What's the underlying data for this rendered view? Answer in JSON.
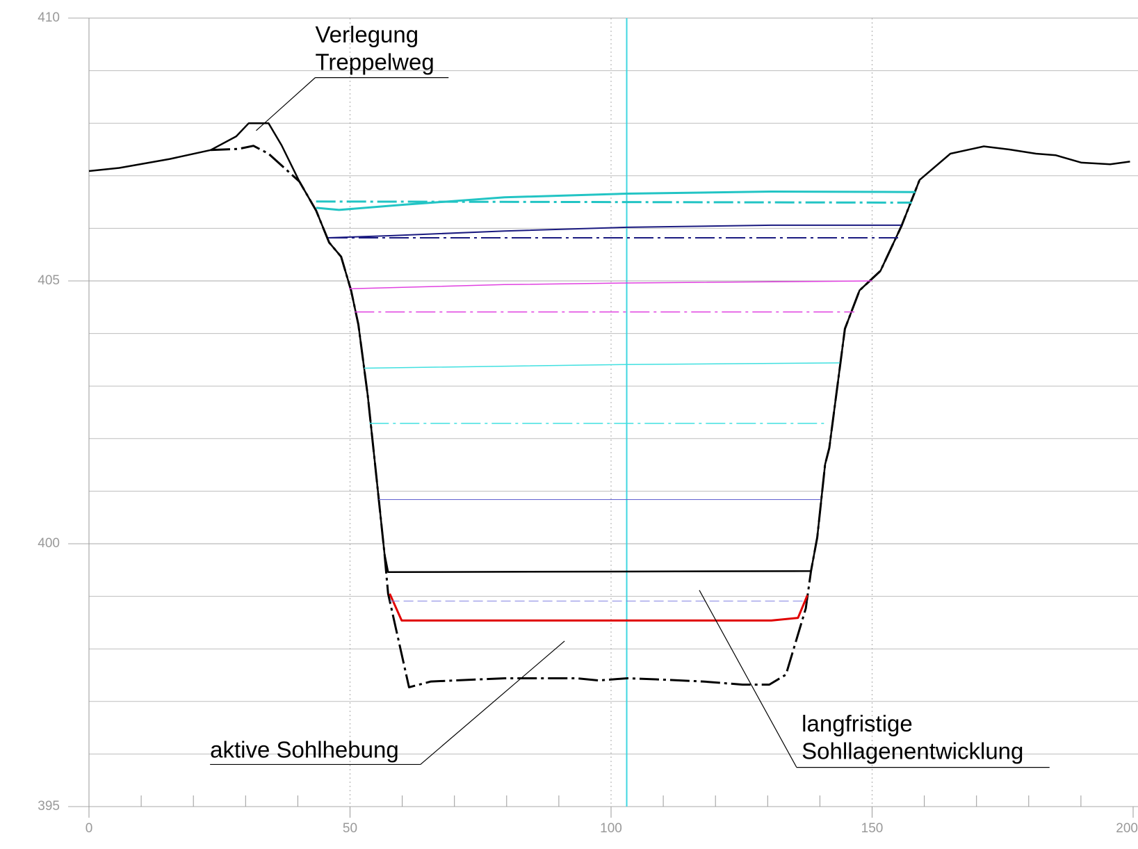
{
  "chart_data": {
    "type": "line",
    "xlim": [
      0,
      200
    ],
    "ylim": [
      395,
      410
    ],
    "xticks": [
      0,
      50,
      100,
      150,
      200
    ],
    "yticks": [
      395,
      400,
      405,
      410
    ],
    "minor_xticks": [
      10,
      20,
      30,
      40,
      60,
      70,
      80,
      90,
      110,
      120,
      130,
      140,
      160,
      170,
      180,
      190
    ],
    "minor_yticks": [
      396,
      397,
      398,
      399,
      401,
      402,
      403,
      404,
      406,
      407,
      408,
      409
    ],
    "grid": true,
    "vline": {
      "x": 103,
      "color": "#3fd6e0"
    },
    "series": [
      {
        "color": "#000000",
        "style": "dashdot",
        "width": 3,
        "x": [
          23.3,
          28.6,
          31.5,
          34.4,
          40.3,
          43.5,
          46.0,
          48.3,
          50.2,
          51.6,
          53.4,
          55.1,
          56.6,
          57.3,
          61.3,
          65.5,
          79.6,
          93.4,
          97.6,
          103.1,
          108.6,
          117.6,
          125.2,
          130.3,
          133.5,
          137.3,
          138.3,
          139.5,
          141.0,
          141.8,
          144.8,
          147.6,
          151.6,
          155.6,
          159.1
        ],
        "values": [
          407.49,
          407.51,
          407.57,
          407.42,
          406.89,
          406.34,
          405.73,
          405.46,
          404.82,
          404.17,
          402.82,
          401.23,
          399.81,
          399.05,
          397.27,
          397.38,
          397.44,
          397.44,
          397.4,
          397.44,
          397.42,
          397.38,
          397.32,
          397.32,
          397.51,
          398.77,
          399.48,
          400.12,
          401.51,
          401.82,
          404.09,
          404.82,
          405.19,
          406.04,
          406.92
        ]
      },
      {
        "color": "#000000",
        "style": "solid",
        "width": 2.5,
        "x": [
          0,
          5.8,
          15.5,
          23.3,
          28.2,
          30.6,
          34.4,
          36.9,
          40.3,
          43.5,
          46.0,
          48.3,
          50.2,
          51.6,
          53.4,
          55.1,
          56.6,
          57.3,
          138.3,
          139.5,
          141.0,
          141.8,
          144.8,
          147.6,
          151.6,
          155.6,
          159.1,
          165.0,
          171.4,
          176.3,
          181.4,
          185.2,
          190.1,
          195.6,
          199.4
        ],
        "values": [
          407.09,
          407.15,
          407.32,
          407.49,
          407.75,
          408.0,
          408.0,
          407.58,
          406.89,
          406.34,
          405.73,
          405.46,
          404.82,
          404.17,
          402.82,
          401.23,
          399.81,
          399.46,
          399.48,
          400.12,
          401.51,
          401.82,
          404.09,
          404.82,
          405.19,
          406.04,
          406.92,
          407.42,
          407.56,
          407.5,
          407.42,
          407.39,
          407.25,
          407.22,
          407.27
        ]
      },
      {
        "color": "#e00000",
        "style": "solid",
        "width": 3,
        "x": [
          57.6,
          59.9,
          130.7,
          135.8,
          137.6
        ],
        "values": [
          399.05,
          398.54,
          398.54,
          398.59,
          399.02
        ]
      },
      {
        "color": "#22c4c4",
        "style": "solid",
        "width": 3,
        "x": [
          43.5,
          47.9,
          60.3,
          79.6,
          103,
          130.7,
          158.3
        ],
        "values": [
          406.39,
          406.35,
          406.45,
          406.59,
          406.66,
          406.7,
          406.69
        ]
      },
      {
        "color": "#22c4c4",
        "style": "dashdot",
        "width": 3,
        "x": [
          43.5,
          157.6
        ],
        "values": [
          406.51,
          406.49
        ]
      },
      {
        "color": "#1a1a80",
        "style": "solid",
        "width": 2,
        "x": [
          45.8,
          57.6,
          79.6,
          103,
          130.7,
          155.6
        ],
        "values": [
          405.82,
          405.86,
          405.95,
          406.02,
          406.06,
          406.06
        ]
      },
      {
        "color": "#1a1a80",
        "style": "dashdot",
        "width": 2,
        "x": [
          45.8,
          155.6
        ],
        "values": [
          405.82,
          405.82
        ]
      },
      {
        "color": "#e040e0",
        "style": "solid",
        "width": 1.5,
        "x": [
          49.8,
          79.6,
          103,
          150
        ],
        "values": [
          404.85,
          404.93,
          404.96,
          405.0
        ]
      },
      {
        "color": "#e040e0",
        "style": "dashdot",
        "width": 1.5,
        "x": [
          50.9,
          146.6
        ],
        "values": [
          404.41,
          404.41
        ]
      },
      {
        "color": "#40e0e0",
        "style": "solid",
        "width": 1.5,
        "x": [
          52.7,
          103,
          143.8
        ],
        "values": [
          403.34,
          403.41,
          403.44
        ]
      },
      {
        "color": "#40e0e0",
        "style": "dashdot",
        "width": 1.5,
        "x": [
          53.7,
          141.5
        ],
        "values": [
          402.29,
          402.29
        ]
      },
      {
        "color": "#6060d0",
        "style": "solid",
        "width": 1,
        "x": [
          55.5,
          140.1
        ],
        "values": [
          400.84,
          400.84
        ]
      },
      {
        "color": "#8080e0",
        "style": "dash",
        "width": 1,
        "x": [
          57.6,
          137.6
        ],
        "values": [
          398.91,
          398.91
        ]
      }
    ],
    "annotations": [
      {
        "lines": [
          "Verlegung",
          "Treppelweg"
        ]
      },
      {
        "lines": [
          "aktive Sohlhebung"
        ]
      },
      {
        "lines": [
          "langfristige",
          "Sohllagenentwicklung"
        ]
      }
    ]
  }
}
